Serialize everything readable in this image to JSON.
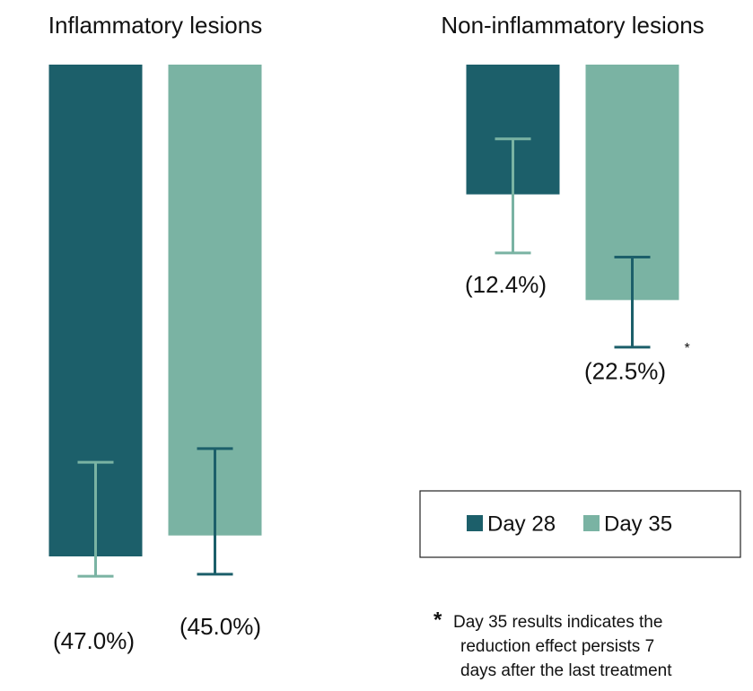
{
  "chart_data": {
    "type": "bar",
    "categories": [
      "Inflammatory lesions",
      "Non-inflammatory lesions"
    ],
    "ylim": [
      -50,
      0
    ],
    "series": [
      {
        "name": "Day 28",
        "color": "#1c5f6a",
        "error_color": "#7ab3a3",
        "values": [
          -47.0,
          -12.4
        ],
        "value_labels": [
          "(47.0%)",
          "(12.4%)"
        ],
        "errors": [
          [
            -38.0,
            -48.9
          ],
          [
            -7.1,
            -18.0
          ]
        ]
      },
      {
        "name": "Day 35",
        "color": "#7ab3a3",
        "error_color": "#1c5f6a",
        "values": [
          -45.0,
          -22.5
        ],
        "value_labels": [
          "(45.0%)",
          "(22.5%)"
        ],
        "errors": [
          [
            -36.7,
            -48.7
          ],
          [
            -18.4,
            -27.0
          ]
        ]
      }
    ],
    "note_marker": "*",
    "footnote": [
      "Day 35 results indicates the",
      "reduction effect persists 7",
      "days after the last treatment"
    ]
  }
}
